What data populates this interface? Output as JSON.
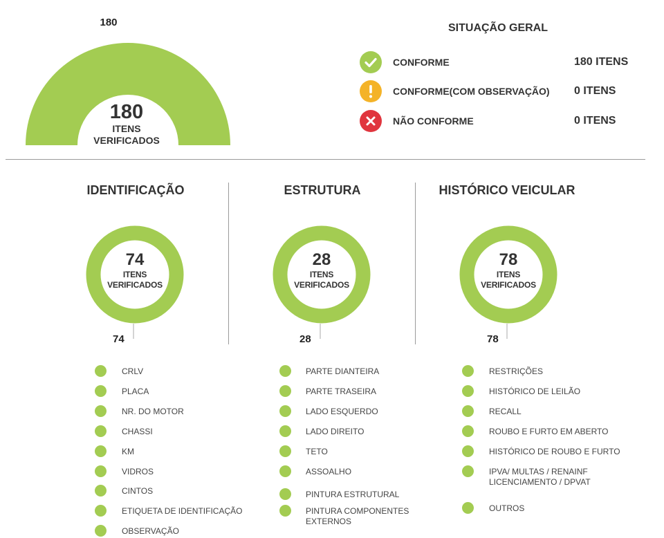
{
  "colors": {
    "accent": "#a3cc52",
    "ok": "#a3cc52",
    "warn": "#f4b328",
    "error": "#e0353e",
    "track": "#a3cc52"
  },
  "overall": {
    "top_label": "180",
    "number": "180",
    "line1": "ITENS",
    "line2": "VERIFICADOS"
  },
  "status": {
    "title": "SITUAÇÃO GERAL",
    "rows": [
      {
        "icon": "check-icon",
        "label": "CONFORME",
        "value": "180 ITENS"
      },
      {
        "icon": "warning-icon",
        "label": "CONFORME(COM OBSERVAÇÃO)",
        "value": "0 ITENS"
      },
      {
        "icon": "x-icon",
        "label": "NÃO CONFORME",
        "value": "0 ITENS"
      }
    ]
  },
  "sections": [
    {
      "title": "IDENTIFICAÇÃO",
      "number": "74",
      "line1": "ITENS",
      "line2": "VERIFICADOS",
      "label": "74",
      "items": [
        "CRLV",
        "PLACA",
        "NR. DO MOTOR",
        "CHASSI",
        "KM",
        "VIDROS",
        "CINTOS",
        "ETIQUETA DE IDENTIFICAÇÃO",
        "OBSERVAÇÃO"
      ]
    },
    {
      "title": "ESTRUTURA",
      "number": "28",
      "line1": "ITENS",
      "line2": "VERIFICADOS",
      "label": "28",
      "items": [
        "PARTE DIANTEIRA",
        "PARTE TRASEIRA",
        "LADO ESQUERDO",
        "LADO DIREITO",
        "TETO",
        "ASSOALHO",
        "PINTURA ESTRUTURAL",
        "PINTURA COMPONENTES\nEXTERNOS"
      ]
    },
    {
      "title": "HISTÓRICO VEICULAR",
      "number": "78",
      "line1": "ITENS",
      "line2": "VERIFICADOS",
      "label": "78",
      "items": [
        "RESTRIÇÕES",
        "HISTÓRICO DE LEILÃO",
        "RECALL",
        "ROUBO E FURTO EM ABERTO",
        "HISTÓRICO DE ROUBO E FURTO",
        "IPVA/ MULTAS / RENAINF\nLICENCIAMENTO / DPVAT",
        "OUTROS"
      ]
    }
  ],
  "chart_data": [
    {
      "type": "pie",
      "title": "",
      "values": [
        180
      ],
      "categories": [
        "CONFORME"
      ],
      "center_text": "180 ITENS VERIFICADOS"
    },
    {
      "type": "pie",
      "title": "IDENTIFICAÇÃO",
      "values": [
        74
      ],
      "categories": [
        "CONFORME"
      ]
    },
    {
      "type": "pie",
      "title": "ESTRUTURA",
      "values": [
        28
      ],
      "categories": [
        "CONFORME"
      ]
    },
    {
      "type": "pie",
      "title": "HISTÓRICO VEICULAR",
      "values": [
        78
      ],
      "categories": [
        "CONFORME"
      ]
    }
  ]
}
